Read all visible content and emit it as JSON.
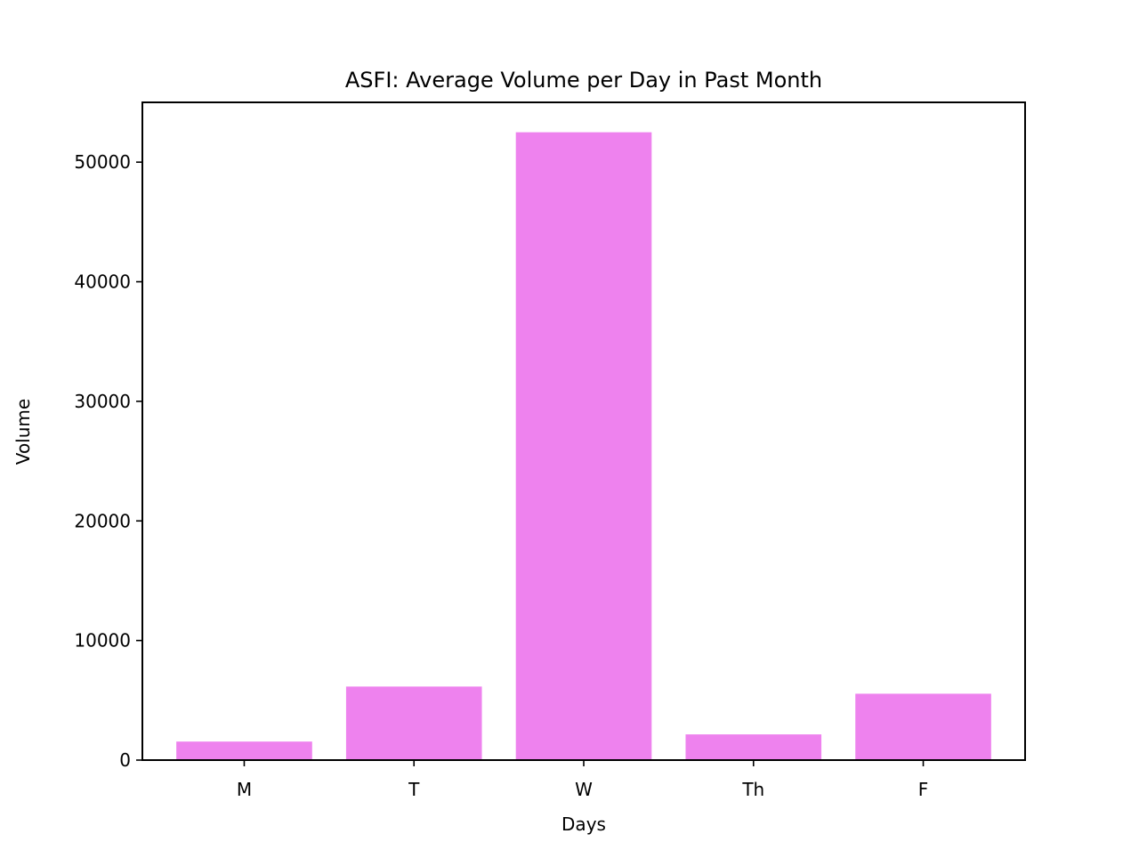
{
  "chart_data": {
    "type": "bar",
    "title": "ASFI: Average Volume per Day in Past Month",
    "xlabel": "Days",
    "ylabel": "Volume",
    "categories": [
      "M",
      "T",
      "W",
      "Th",
      "F"
    ],
    "values": [
      1550,
      6150,
      52500,
      2150,
      5550
    ],
    "ylim": [
      0,
      55000
    ],
    "yticks": [
      0,
      10000,
      20000,
      30000,
      40000,
      50000
    ],
    "ytick_labels": [
      "0",
      "10000",
      "20000",
      "30000",
      "40000",
      "50000"
    ],
    "bar_color": "#ee82ee",
    "grid": false,
    "legend": "none"
  }
}
